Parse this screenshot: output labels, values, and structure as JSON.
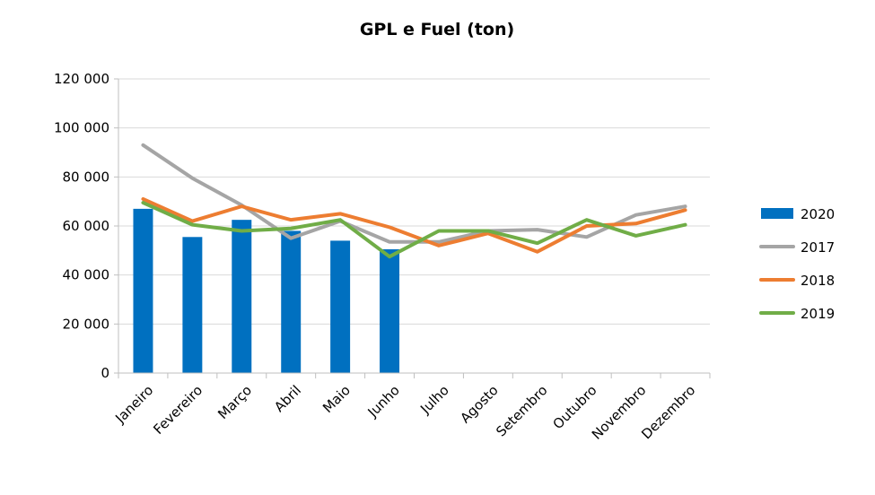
{
  "chart_data": {
    "type": "bar",
    "title": "GPL e Fuel (ton)",
    "xlabel": "",
    "ylabel": "",
    "ylim": [
      0,
      120000
    ],
    "yticks": [
      0,
      20000,
      40000,
      60000,
      80000,
      100000,
      120000
    ],
    "ytick_labels": [
      "0",
      "20 000",
      "40 000",
      "60 000",
      "80 000",
      "100 000",
      "120 000"
    ],
    "categories": [
      "Janeiro",
      "Fevereiro",
      "Março",
      "Abril",
      "Maio",
      "Junho",
      "Julho",
      "Agosto",
      "Setembro",
      "Outubro",
      "Novembro",
      "Dezembro"
    ],
    "grid": true,
    "legend_position": "right",
    "series": [
      {
        "name": "2020",
        "type": "bar",
        "color": "#0070C0",
        "values": [
          67000,
          55500,
          62500,
          58000,
          54000,
          50500,
          null,
          null,
          null,
          null,
          null,
          null
        ]
      },
      {
        "name": "2017",
        "type": "line",
        "color": "#A5A5A5",
        "values": [
          93000,
          79500,
          68500,
          55000,
          62000,
          53500,
          53500,
          58000,
          58500,
          55500,
          64500,
          68000
        ]
      },
      {
        "name": "2018",
        "type": "line",
        "color": "#ED7D31",
        "values": [
          71000,
          62000,
          68000,
          62500,
          65000,
          59500,
          52000,
          57000,
          49500,
          60000,
          61000,
          66500
        ]
      },
      {
        "name": "2019",
        "type": "line",
        "color": "#70AD47",
        "values": [
          69500,
          60500,
          58000,
          59000,
          62500,
          47500,
          58000,
          58000,
          53000,
          62500,
          56000,
          60500
        ]
      }
    ]
  }
}
